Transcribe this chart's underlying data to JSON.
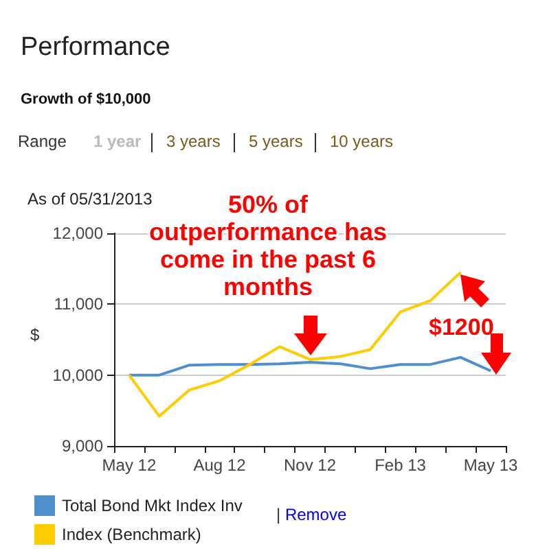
{
  "chart_data": {
    "type": "line",
    "title": "Performance",
    "subtitle": "Growth of $10,000",
    "ylabel": "$",
    "categories": [
      "May 12",
      null,
      null,
      "Aug 12",
      null,
      null,
      "Nov 12",
      null,
      null,
      "Feb 13",
      null,
      null,
      "May 13"
    ],
    "series": [
      {
        "name": "Total Bond Mkt Index Inv",
        "color": "#4f8fcd",
        "values": [
          10000,
          10000,
          10140,
          10150,
          10150,
          10160,
          10180,
          10160,
          10090,
          10150,
          10150,
          10250,
          10060
        ]
      },
      {
        "name": "Index (Benchmark)",
        "color": "#ffcc00",
        "values": [
          10000,
          9420,
          9790,
          9920,
          10150,
          10400,
          10220,
          10260,
          10360,
          10890,
          11050,
          11450,
          null
        ]
      }
    ],
    "ylim": [
      9000,
      12000
    ],
    "yticks": [
      {
        "value": 9000,
        "label": "9,000"
      },
      {
        "value": 10000,
        "label": "10,000"
      },
      {
        "value": 11000,
        "label": "11,000"
      },
      {
        "value": 12000,
        "label": "12,000"
      }
    ],
    "grid": "y",
    "legend": "bottom left",
    "marker": "none",
    "line_style": "solid",
    "annotations": [
      "Range",
      "1 year",
      "3 years",
      "5 years",
      "10 years",
      "As of 05/31/2013",
      "50% of\noutperformance has\ncome in the past 6\nmonths",
      "$1200",
      "| Remove"
    ]
  }
}
